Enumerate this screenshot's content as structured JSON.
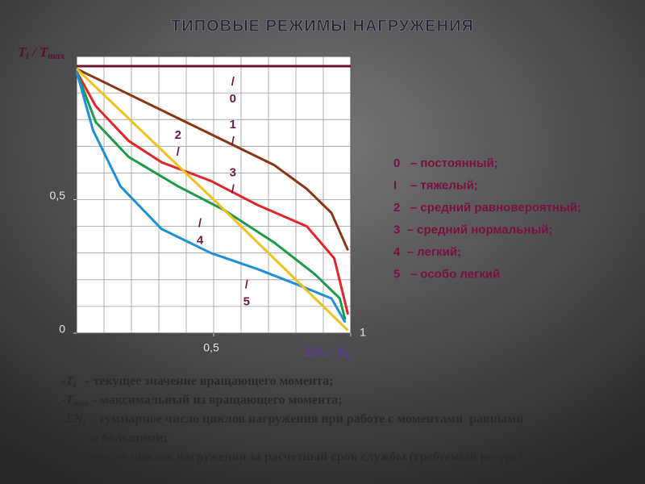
{
  "chart_data": {
    "type": "line",
    "title": "ТИПОВЫЕ РЕЖИМЫ НАГРУЖЕНИЯ",
    "ylabel": [
      "T",
      "i",
      " / T",
      "max"
    ],
    "xlabel": [
      "ΣN",
      "i",
      " / N",
      "k"
    ],
    "xlim": [
      0,
      1
    ],
    "ylim": [
      0,
      1
    ],
    "xticks": [
      {
        "value": 0.5,
        "label": "0,5"
      },
      1
    ],
    "yticks": [
      0,
      {
        "value": 0.5,
        "label": "0,5"
      }
    ],
    "grid": true,
    "series": [
      {
        "name": "0",
        "color": "#6e0f2c",
        "x": [
          0,
          1
        ],
        "values": [
          1,
          1
        ]
      },
      {
        "name": "1",
        "color": "#8a3614",
        "x": [
          0,
          0.16,
          0.4,
          0.6,
          0.72,
          0.84,
          0.93,
          0.99
        ],
        "values": [
          0.99,
          0.91,
          0.79,
          0.69,
          0.63,
          0.54,
          0.45,
          0.31
        ]
      },
      {
        "name": "2",
        "color": "#e0262a",
        "x": [
          0,
          0.07,
          0.19,
          0.31,
          0.49,
          0.66,
          0.84,
          0.94,
          0.99
        ],
        "values": [
          0.98,
          0.85,
          0.72,
          0.64,
          0.57,
          0.48,
          0.4,
          0.28,
          0.07
        ]
      },
      {
        "name": "3",
        "color": "#1e9a4a",
        "x": [
          0,
          0.07,
          0.19,
          0.37,
          0.54,
          0.72,
          0.87,
          0.96,
          0.98
        ],
        "values": [
          0.98,
          0.79,
          0.66,
          0.55,
          0.46,
          0.34,
          0.22,
          0.13,
          0.05
        ]
      },
      {
        "name": "4",
        "color": "#1f8fd6",
        "x": [
          0,
          0.06,
          0.16,
          0.31,
          0.49,
          0.66,
          0.81,
          0.93,
          0.98
        ],
        "values": [
          0.98,
          0.76,
          0.55,
          0.39,
          0.3,
          0.24,
          0.18,
          0.13,
          0.04
        ]
      },
      {
        "name": "5",
        "color": "#f2c01c",
        "x": [
          0,
          0.5,
          0.99
        ],
        "values": [
          0.99,
          0.5,
          0.01
        ]
      }
    ],
    "curve_labels": [
      {
        "lines": [
          "/",
          "0"
        ],
        "x": 0.57,
        "y": 0.94
      },
      {
        "lines": [
          "1",
          "/"
        ],
        "x": 0.57,
        "y": 0.78
      },
      {
        "lines": [
          "2",
          "/"
        ],
        "x": 0.37,
        "y": 0.74
      },
      {
        "lines": [
          "3",
          "/"
        ],
        "x": 0.57,
        "y": 0.6
      },
      {
        "lines": [
          "/",
          "4"
        ],
        "x": 0.45,
        "y": 0.41
      },
      {
        "lines": [
          "/",
          "5"
        ],
        "x": 0.62,
        "y": 0.18
      }
    ]
  },
  "legend_items": [
    "0   – постоянный;",
    "I    – тяжелый;",
    "2   – средний равновероятный;",
    "3  – средний нормальный;",
    "4  – легкий;",
    "5   – особо легкий"
  ],
  "notes": [
    {
      "lead": "-",
      "sym": "T",
      "sub": "i",
      "text": "   - текущее значение вращающего момента;"
    },
    {
      "lead": "-",
      "sym": "T",
      "sub": "max",
      "text": " - максимальный из вращающего момента;"
    },
    {
      "lead": "-",
      "sym": "ΣN",
      "sub": "i",
      "text": "  - суммарное число циклов нагружения при работе с моментами  равными"
    },
    {
      "lead": "-",
      "text": "        и большими;"
    },
    {
      "lead": "-",
      "sym": "N",
      "sub": "k",
      "text": "  - число циклов нагружения за расчетный срок службы (требуемый ресурс)"
    }
  ]
}
